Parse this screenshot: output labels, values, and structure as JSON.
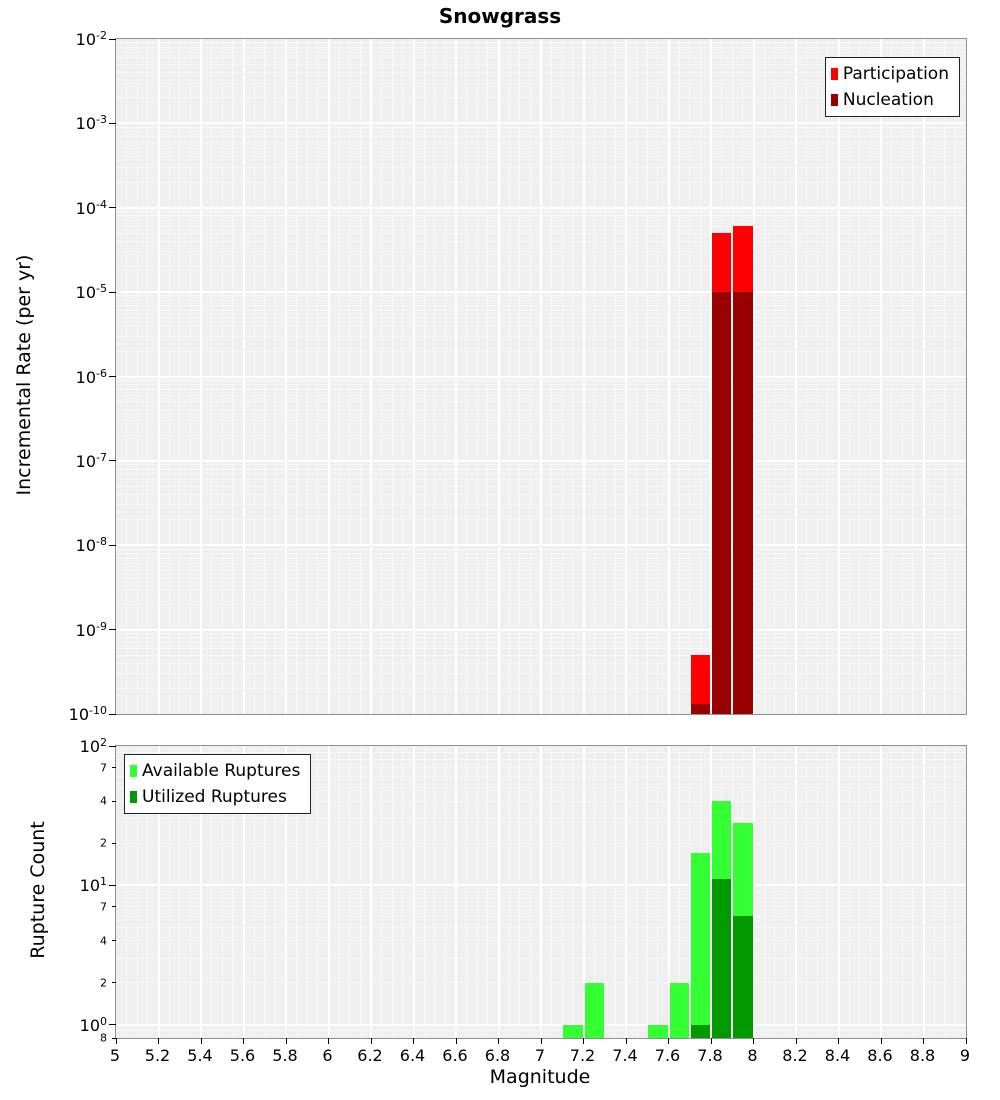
{
  "figure_title": "Snowgrass",
  "x_axis": {
    "label": "Magnitude",
    "min": 5,
    "max": 9,
    "minor_step": 0.05,
    "major_tick_labels": [
      "5",
      "5.2",
      "5.4",
      "5.6",
      "5.8",
      "6",
      "6.2",
      "6.4",
      "6.6",
      "6.8",
      "7",
      "7.2",
      "7.4",
      "7.6",
      "7.8",
      "8",
      "8.2",
      "8.4",
      "8.6",
      "8.8",
      "9"
    ]
  },
  "chart_data": [
    {
      "type": "bar",
      "title": "Snowgrass",
      "ylabel": "Incremental Rate (per yr)",
      "yscale": "log",
      "grid": true,
      "xlim": [
        5,
        9
      ],
      "ylim": [
        1e-10,
        0.01
      ],
      "bin_width": 0.1,
      "y_major_tick_exponents": [
        -2,
        -3,
        -4,
        -5,
        -6,
        -7,
        -8,
        -9,
        -10
      ],
      "y_minor_tick_labels": [],
      "legend_position": "top-right",
      "series": [
        {
          "name": "Participation",
          "color": "#ff0000",
          "points": [
            [
              7.75,
              5e-10
            ],
            [
              7.85,
              5e-05
            ],
            [
              7.95,
              6e-05
            ]
          ]
        },
        {
          "name": "Nucleation",
          "color": "#990000",
          "points": [
            [
              7.75,
              1.3e-10
            ],
            [
              7.85,
              1e-05
            ],
            [
              7.95,
              1e-05
            ]
          ]
        }
      ]
    },
    {
      "type": "bar",
      "title": "",
      "ylabel": "Rupture Count",
      "yscale": "log",
      "grid": true,
      "xlim": [
        5,
        9
      ],
      "ylim": [
        0.8,
        100
      ],
      "bin_width": 0.1,
      "y_major_tick_exponents": [
        2,
        1,
        0
      ],
      "y_minor_tick_labels": [
        [
          70,
          "7"
        ],
        [
          40,
          "4"
        ],
        [
          20,
          "2"
        ],
        [
          7,
          "7"
        ],
        [
          4,
          "4"
        ],
        [
          2,
          "2"
        ],
        [
          0.8,
          "8"
        ]
      ],
      "legend_position": "top-left",
      "series": [
        {
          "name": "Available Ruptures",
          "color": "#33ff33",
          "points": [
            [
              7.15,
              1
            ],
            [
              7.25,
              2
            ],
            [
              7.55,
              1
            ],
            [
              7.65,
              2
            ],
            [
              7.75,
              17
            ],
            [
              7.85,
              40
            ],
            [
              7.95,
              28
            ]
          ]
        },
        {
          "name": "Utilized Ruptures",
          "color": "#009900",
          "points": [
            [
              7.75,
              1
            ],
            [
              7.85,
              11
            ],
            [
              7.95,
              6
            ]
          ]
        }
      ]
    }
  ]
}
